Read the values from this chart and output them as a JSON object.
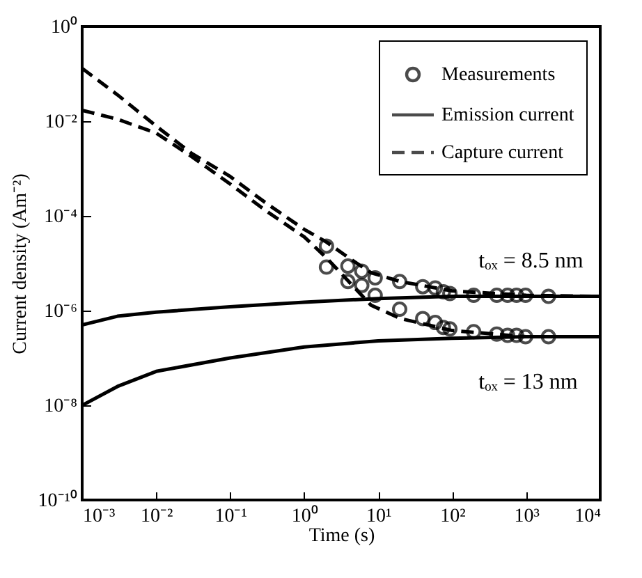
{
  "chart_data": {
    "type": "line",
    "xlabel": "Time (s)",
    "ylabel": "Current density (Am⁻²)",
    "log": "xy",
    "legend": "top right",
    "xlim": [
      0.001,
      10000
    ],
    "xticks": [
      {
        "value": 0.001,
        "label": "10⁻³"
      },
      {
        "value": 0.01,
        "label": "10⁻²"
      },
      {
        "value": 0.1,
        "label": "10⁻¹"
      },
      {
        "value": 1,
        "label": "10⁰"
      },
      {
        "value": 10,
        "label": "10¹"
      },
      {
        "value": 100,
        "label": "10²"
      },
      {
        "value": 1000,
        "label": "10³"
      },
      {
        "value": 10000,
        "label": "10⁴"
      }
    ],
    "ylim": [
      1e-10,
      1
    ],
    "yticks": [
      {
        "value": 1e-10,
        "label": "10⁻¹⁰"
      },
      {
        "value": 1e-08,
        "label": "10⁻⁸"
      },
      {
        "value": 1e-06,
        "label": "10⁻⁶"
      },
      {
        "value": 0.0001,
        "label": "10⁻⁴"
      },
      {
        "value": 0.01,
        "label": "10⁻²"
      },
      {
        "value": 1,
        "label": "10⁰"
      }
    ],
    "series": [
      {
        "name": "Measurements",
        "type": "scatter",
        "marker": "circle",
        "color": "#000000",
        "x": [
          2,
          3.9,
          6,
          9.1,
          19.5,
          40,
          59,
          76,
          93,
          195,
          400,
          560,
          740,
          980,
          2000
        ],
        "values": [
          2.3e-05,
          8.7e-06,
          6.8e-06,
          4.9e-06,
          4.1e-06,
          3.2e-06,
          3e-06,
          2.5e-06,
          2.3e-06,
          2.1e-06,
          2.1e-06,
          2.1e-06,
          2.1e-06,
          2.1e-06,
          2e-06
        ]
      },
      {
        "type": "scatter",
        "marker": "circle",
        "color": "#000000",
        "x": [
          2,
          3.9,
          6,
          9.1,
          19.5,
          40,
          59,
          76,
          93,
          195,
          400,
          560,
          740,
          980,
          2000
        ],
        "values": [
          8.3e-06,
          4.1e-06,
          3.4e-06,
          2.1e-06,
          1.07e-06,
          6.8e-07,
          5.6e-07,
          4.4e-07,
          4.1e-07,
          3.6e-07,
          3.2e-07,
          3e-07,
          3e-07,
          2.8e-07,
          2.8e-07
        ]
      },
      {
        "name": "Emission current",
        "line_style": "solid",
        "color": "#000000",
        "x": [
          0.001,
          0.003,
          0.01,
          0.1,
          1,
          10,
          100,
          1000,
          10000
        ],
        "values": [
          5e-07,
          7.6e-07,
          9.3e-07,
          1.2e-06,
          1.5e-06,
          1.8e-06,
          2e-06,
          2e-06,
          2e-06
        ]
      },
      {
        "line_style": "solid",
        "color": "#000000",
        "x": [
          0.001,
          0.003,
          0.01,
          0.1,
          1,
          10,
          100,
          1000,
          10000
        ],
        "values": [
          1e-08,
          2.5e-08,
          5.2e-08,
          1e-07,
          1.7e-07,
          2.3e-07,
          2.6e-07,
          2.8e-07,
          2.8e-07
        ]
      },
      {
        "name": "Capture current",
        "line_style": "dashed",
        "color": "#000000",
        "x": [
          0.001,
          0.003,
          0.01,
          0.03,
          0.1,
          0.3,
          1,
          2,
          4,
          8,
          20,
          100,
          1000,
          10000
        ],
        "values": [
          0.13,
          0.036,
          0.0079,
          0.0021,
          0.00068,
          0.00019,
          5.2e-05,
          2.8e-05,
          1.3e-05,
          6.3e-06,
          4.1e-06,
          2.6e-06,
          2.1e-06,
          2e-06
        ]
      },
      {
        "line_style": "dashed",
        "color": "#000000",
        "x": [
          0.001,
          0.003,
          0.01,
          0.03,
          0.1,
          0.3,
          1,
          2,
          4,
          8,
          20,
          100,
          1000,
          10000
        ],
        "values": [
          0.017,
          0.011,
          0.0056,
          0.0018,
          0.00047,
          0.00013,
          3.6e-05,
          1.3e-05,
          4.1e-06,
          1.3e-06,
          6.8e-07,
          3.8e-07,
          2.8e-07,
          2.8e-07
        ]
      }
    ],
    "annotations": [
      {
        "text": "tₒₓ = 8.5 nm",
        "x": 270,
        "y": 2e-06
      },
      {
        "text": "tₒₓ = 13 nm",
        "x": 270,
        "y": 2.8e-07
      }
    ]
  }
}
